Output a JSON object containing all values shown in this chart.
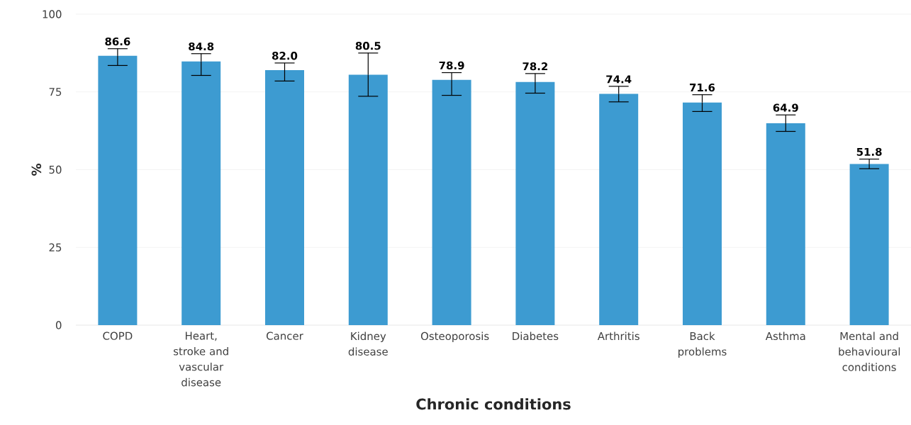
{
  "chart_data": {
    "type": "bar",
    "xlabel": "Chronic conditions",
    "ylabel": "%",
    "categories": [
      "COPD",
      "Heart, stroke and vascular disease",
      "Cancer",
      "Kidney disease",
      "Osteoporosis",
      "Diabetes",
      "Arthritis",
      "Back problems",
      "Asthma",
      "Mental and behavioural conditions"
    ],
    "values": [
      86.6,
      84.8,
      82.0,
      80.5,
      78.9,
      78.2,
      74.4,
      71.6,
      64.9,
      51.8
    ],
    "errors": [
      [
        83.5,
        88.9
      ],
      [
        80.3,
        87.3
      ],
      [
        78.5,
        84.3
      ],
      [
        73.6,
        87.5
      ],
      [
        73.9,
        81.2
      ],
      [
        74.6,
        80.9
      ],
      [
        71.8,
        76.8
      ],
      [
        68.7,
        74.1
      ],
      [
        62.3,
        67.6
      ],
      [
        50.3,
        53.4
      ]
    ],
    "color": "#3d9bd1",
    "ylim": [
      0,
      100
    ],
    "yticks": [
      0,
      25,
      50,
      75,
      100
    ],
    "grid": "y",
    "value_labels": [
      "86.6",
      "84.8",
      "82.0",
      "80.5",
      "78.9",
      "78.2",
      "74.4",
      "71.6",
      "64.9",
      "51.8"
    ]
  }
}
